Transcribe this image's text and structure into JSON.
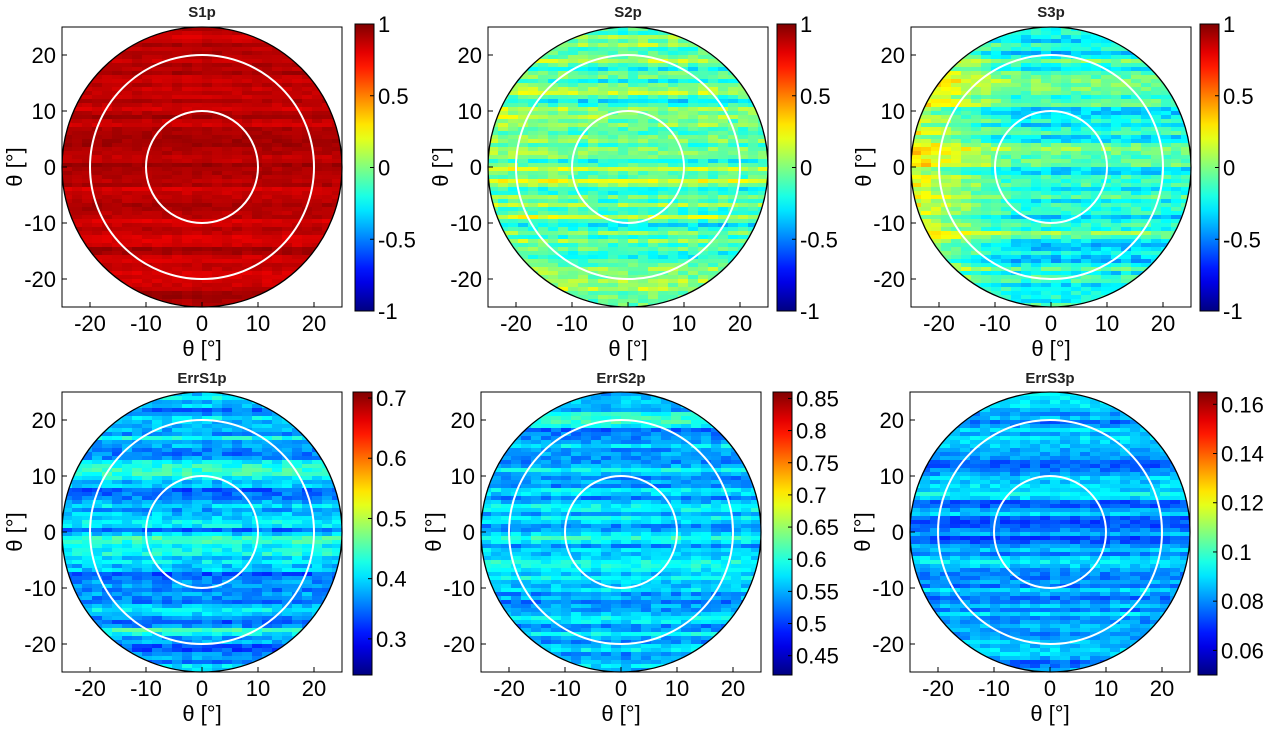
{
  "chart_data": [
    {
      "type": "heatmap",
      "title": "S1p",
      "xlabel": "θ [°]",
      "ylabel": "θ [°]",
      "xlim": [
        -25,
        25
      ],
      "ylim": [
        -25,
        25
      ],
      "xticks": [
        "-20",
        "-10",
        "0",
        "10",
        "20"
      ],
      "yticks": [
        "20",
        "10",
        "0",
        "-10",
        "-20"
      ],
      "colorbar": {
        "min": -1,
        "max": 1,
        "ticks": [
          "1",
          "0.5",
          "0",
          "-0.5",
          "-1"
        ]
      },
      "mean_value": 0.88,
      "band_amplitude": 0.08,
      "edge_trend": 0,
      "circle_radii_deg": [
        10,
        20
      ],
      "colormap": "jet"
    },
    {
      "type": "heatmap",
      "title": "S2p",
      "xlabel": "θ [°]",
      "ylabel": "θ [°]",
      "xlim": [
        -25,
        25
      ],
      "ylim": [
        -25,
        25
      ],
      "xticks": [
        "-20",
        "-10",
        "0",
        "10",
        "20"
      ],
      "yticks": [
        "20",
        "10",
        "0",
        "-10",
        "-20"
      ],
      "colorbar": {
        "min": -1,
        "max": 1,
        "ticks": [
          "1",
          "0.5",
          "0",
          "-0.5",
          "-1"
        ]
      },
      "mean_value": -0.05,
      "band_amplitude": 0.28,
      "edge_trend": 0.1,
      "circle_radii_deg": [
        10,
        20
      ],
      "colormap": "jet"
    },
    {
      "type": "heatmap",
      "title": "S3p",
      "xlabel": "θ [°]",
      "ylabel": "θ [°]",
      "xlim": [
        -25,
        25
      ],
      "ylim": [
        -25,
        25
      ],
      "xticks": [
        "-20",
        "-10",
        "0",
        "10",
        "20"
      ],
      "yticks": [
        "20",
        "10",
        "0",
        "-10",
        "-20"
      ],
      "colorbar": {
        "min": -1,
        "max": 1,
        "ticks": [
          "1",
          "0.5",
          "0",
          "-0.5",
          "-1"
        ]
      },
      "mean_value": -0.18,
      "band_amplitude": 0.25,
      "edge_trend": 0.45,
      "circle_radii_deg": [
        10,
        20
      ],
      "colormap": "jet"
    },
    {
      "type": "heatmap",
      "title": "ErrS1p",
      "xlabel": "θ [°]",
      "ylabel": "θ [°]",
      "xlim": [
        -25,
        25
      ],
      "ylim": [
        -25,
        25
      ],
      "xticks": [
        "-20",
        "-10",
        "0",
        "10",
        "20"
      ],
      "yticks": [
        "20",
        "10",
        "0",
        "-10",
        "-20"
      ],
      "colorbar": {
        "min": 0.24,
        "max": 0.71,
        "ticks": [
          "0.7",
          "0.6",
          "0.5",
          "0.4",
          "0.3"
        ]
      },
      "mean_value": 0.39,
      "band_amplitude": 0.06,
      "edge_trend": 0,
      "circle_radii_deg": [
        10,
        20
      ],
      "colormap": "jet"
    },
    {
      "type": "heatmap",
      "title": "ErrS2p",
      "xlabel": "θ [°]",
      "ylabel": "θ [°]",
      "xlim": [
        -25,
        25
      ],
      "ylim": [
        -25,
        25
      ],
      "xticks": [
        "-20",
        "-10",
        "0",
        "10",
        "20"
      ],
      "yticks": [
        "20",
        "10",
        "0",
        "-10",
        "-20"
      ],
      "colorbar": {
        "min": 0.42,
        "max": 0.86,
        "ticks": [
          "0.85",
          "0.8",
          "0.75",
          "0.7",
          "0.65",
          "0.6",
          "0.55",
          "0.5",
          "0.45"
        ]
      },
      "mean_value": 0.56,
      "band_amplitude": 0.05,
      "edge_trend": 0,
      "circle_radii_deg": [
        10,
        20
      ],
      "colormap": "jet"
    },
    {
      "type": "heatmap",
      "title": "ErrS3p",
      "xlabel": "θ [°]",
      "ylabel": "θ [°]",
      "xlim": [
        -25,
        25
      ],
      "ylim": [
        -25,
        25
      ],
      "xticks": [
        "-20",
        "-10",
        "0",
        "10",
        "20"
      ],
      "yticks": [
        "20",
        "10",
        "0",
        "-10",
        "-20"
      ],
      "colorbar": {
        "min": 0.05,
        "max": 0.165,
        "ticks": [
          "0.16",
          "0.14",
          "0.12",
          "0.1",
          "0.08",
          "0.06"
        ]
      },
      "mean_value": 0.082,
      "band_amplitude": 0.012,
      "edge_trend": 0,
      "circle_radii_deg": [
        10,
        20
      ],
      "colormap": "jet"
    }
  ]
}
